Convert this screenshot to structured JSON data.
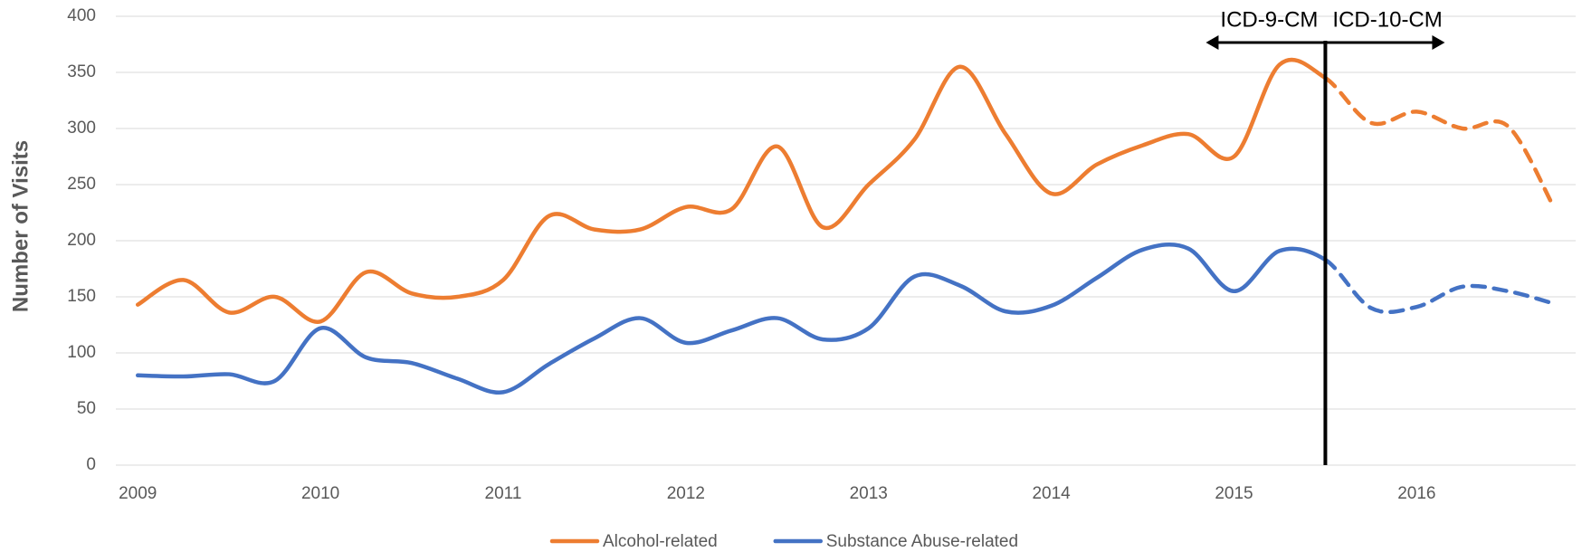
{
  "chart_data": {
    "type": "line",
    "ylabel": "Number of Visits",
    "x": [
      2009,
      2009.25,
      2009.5,
      2009.75,
      2010,
      2010.25,
      2010.5,
      2010.75,
      2011,
      2011.25,
      2011.5,
      2011.75,
      2012,
      2012.25,
      2012.5,
      2012.75,
      2013,
      2013.25,
      2013.5,
      2013.75,
      2014,
      2014.25,
      2014.5,
      2014.75,
      2015,
      2015.25,
      2015.5,
      2015.75,
      2016,
      2016.25,
      2016.5,
      2016.75
    ],
    "series": [
      {
        "name": "Alcohol-related",
        "color": "#ED7D31",
        "values": [
          143,
          165,
          136,
          150,
          128,
          172,
          153,
          150,
          165,
          222,
          210,
          210,
          230,
          228,
          284,
          212,
          250,
          290,
          355,
          295,
          242,
          268,
          285,
          295,
          275,
          357,
          345,
          305,
          315,
          300,
          302,
          230
        ]
      },
      {
        "name": "Substance Abuse-related",
        "color": "#4472C4",
        "values": [
          80,
          79,
          81,
          75,
          122,
          96,
          91,
          77,
          65,
          90,
          113,
          131,
          109,
          120,
          131,
          112,
          122,
          168,
          160,
          137,
          142,
          167,
          192,
          193,
          155,
          191,
          183,
          140,
          141,
          159,
          155,
          144
        ]
      }
    ],
    "dashed_from": 2015.5,
    "annotation": {
      "x": 2015.5,
      "left_label": "ICD-9-CM",
      "right_label": "ICD-10-CM"
    },
    "xlim": [
      2008.88,
      2016.87
    ],
    "xticks": [
      2009,
      2010,
      2011,
      2012,
      2013,
      2014,
      2015,
      2016
    ],
    "ylim": [
      0,
      400
    ],
    "yticks": [
      0,
      50,
      100,
      150,
      200,
      250,
      300,
      350,
      400
    ],
    "grid": true,
    "legend": "bottom"
  }
}
